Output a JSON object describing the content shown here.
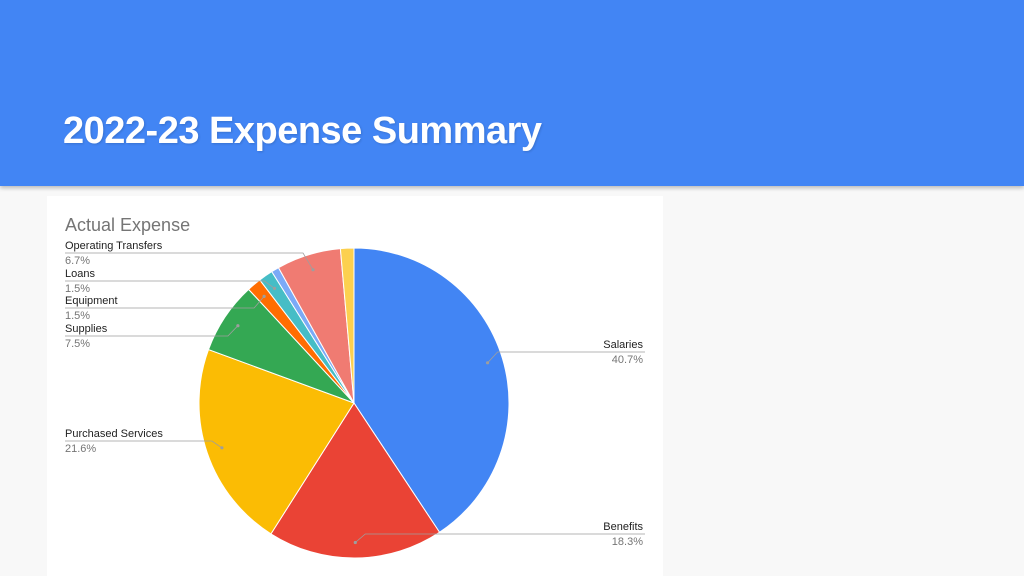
{
  "slide": {
    "title": "2022-23 Expense Summary",
    "header_color": "#4285f4"
  },
  "chart_data": {
    "type": "pie",
    "title": "Actual Expense",
    "slices": [
      {
        "label": "Salaries",
        "value": 40.7,
        "display": "40.7%",
        "color": "#4285f4",
        "side": "right"
      },
      {
        "label": "Benefits",
        "value": 18.3,
        "display": "18.3%",
        "color": "#ea4335",
        "side": "right"
      },
      {
        "label": "Purchased Services",
        "value": 21.6,
        "display": "21.6%",
        "color": "#fbbc04",
        "side": "left"
      },
      {
        "label": "Supplies",
        "value": 7.5,
        "display": "7.5%",
        "color": "#34a853",
        "side": "left"
      },
      {
        "label": "Equipment",
        "value": 1.5,
        "display": "1.5%",
        "color": "#ff6d01",
        "side": "left"
      },
      {
        "label": "Loans",
        "value": 1.5,
        "display": "1.5%",
        "color": "#46bdc6",
        "side": "left"
      },
      {
        "label": "",
        "value": 0.8,
        "display": "",
        "color": "#7baaf7",
        "side": "none"
      },
      {
        "label": "Operating Transfers",
        "value": 6.7,
        "display": "6.7%",
        "color": "#f07b72",
        "side": "left"
      },
      {
        "label": "",
        "value": 1.4,
        "display": "",
        "color": "#fcd04f",
        "side": "none"
      }
    ],
    "legend": "labels with leader lines"
  }
}
